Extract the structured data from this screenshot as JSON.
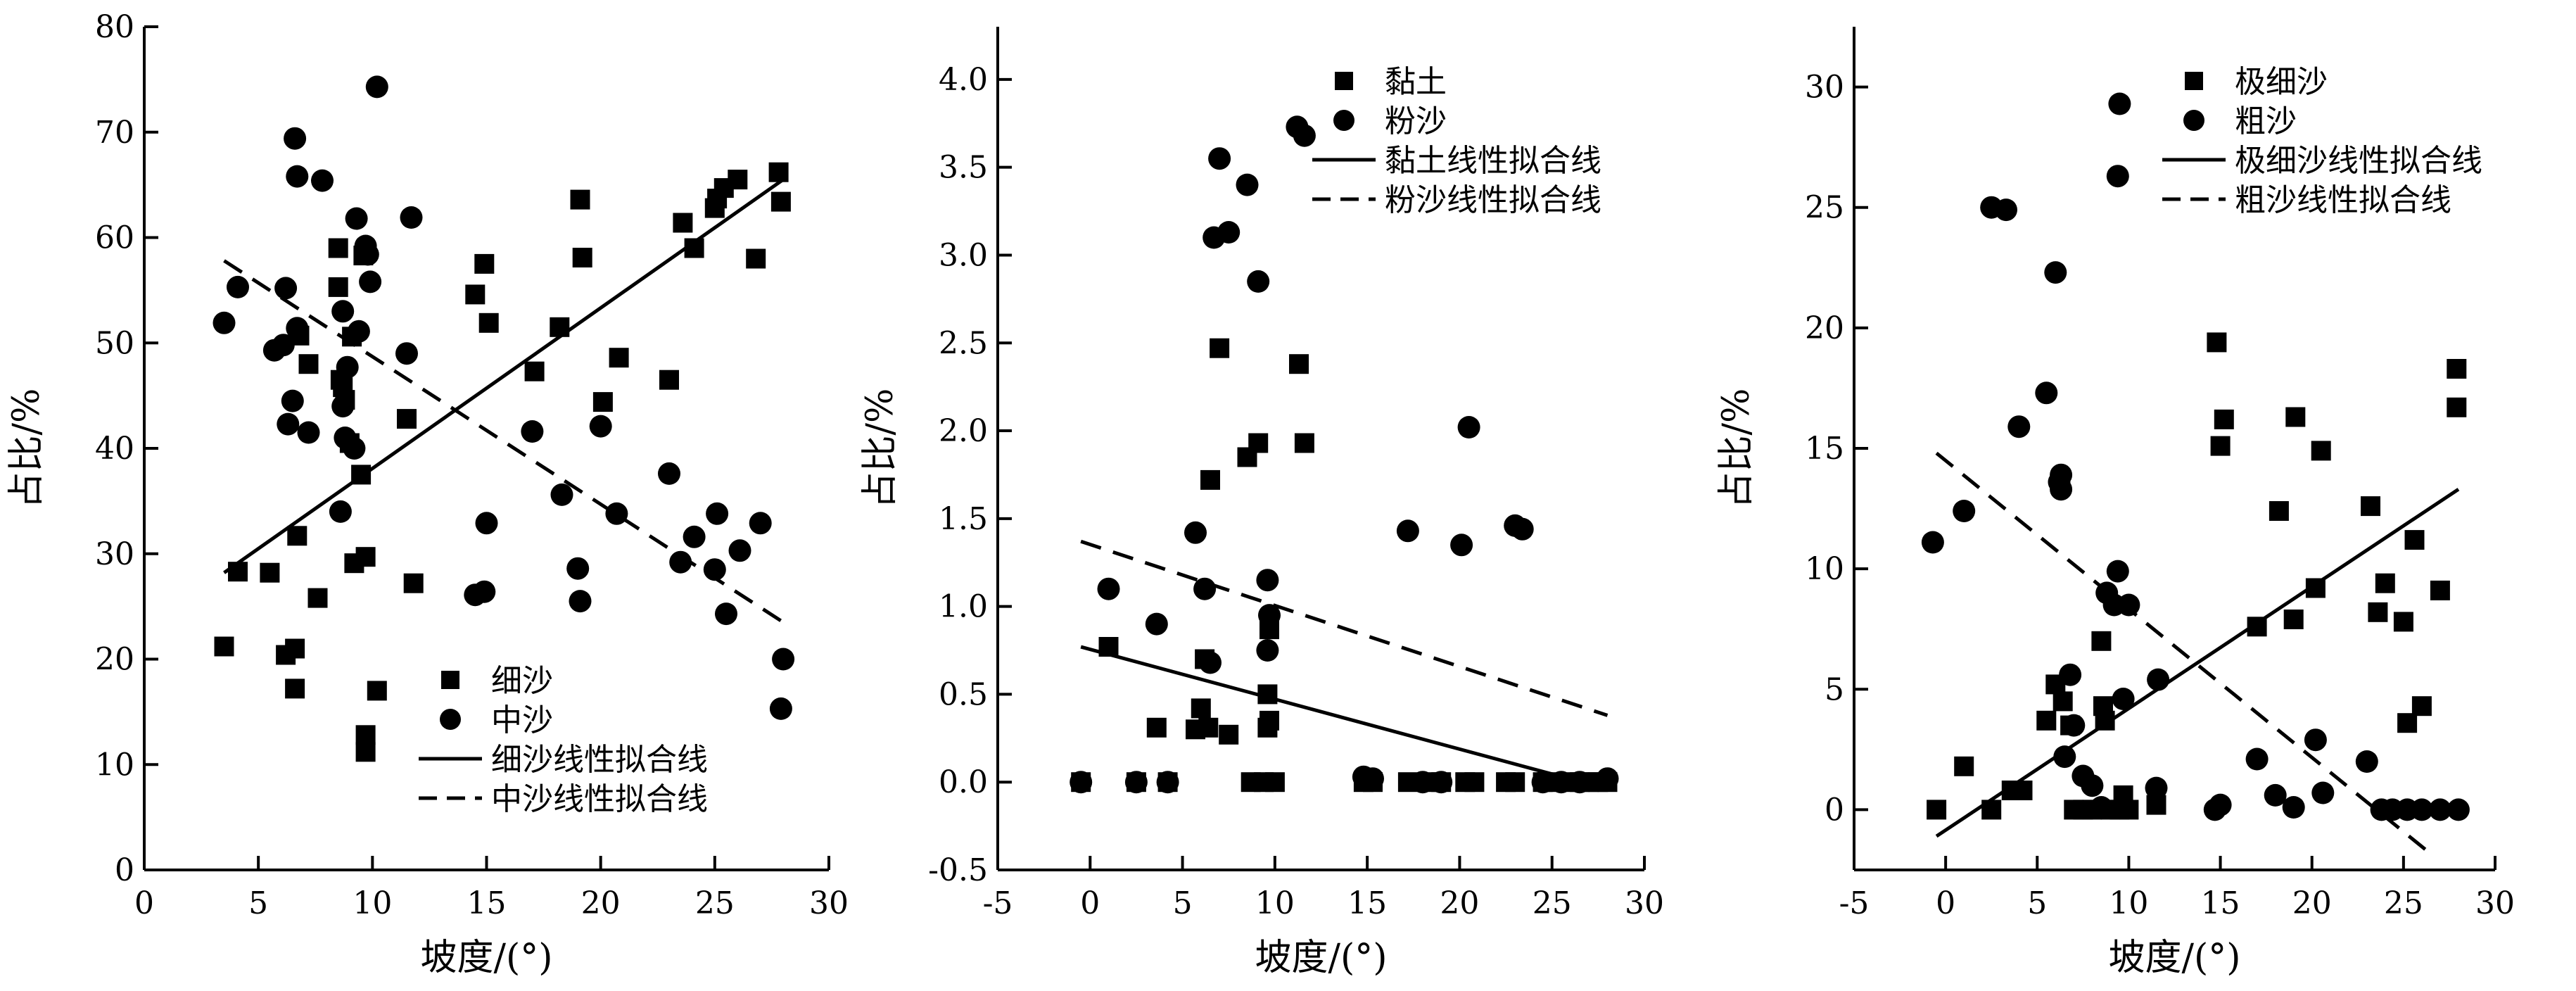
{
  "chart_data": [
    {
      "type": "scatter",
      "title": "",
      "xlabel": "坡度/(°)",
      "ylabel": "占比/%",
      "xlim": [
        0,
        30
      ],
      "ylim": [
        0,
        80
      ],
      "xticks": [
        "0",
        "5",
        "10",
        "15",
        "20",
        "25",
        "30"
      ],
      "yticks": [
        "0",
        "10",
        "20",
        "30",
        "40",
        "50",
        "60",
        "70",
        "80"
      ],
      "legend_position": "bottom-center",
      "series": [
        {
          "name": "细沙",
          "marker": "square",
          "points": [
            [
              3.5,
              21.2
            ],
            [
              4.1,
              28.3
            ],
            [
              5.5,
              28.2
            ],
            [
              6.2,
              20.4
            ],
            [
              6.6,
              17.2
            ],
            [
              6.6,
              21.0
            ],
            [
              6.7,
              31.7
            ],
            [
              6.8,
              50.7
            ],
            [
              7.2,
              48.0
            ],
            [
              7.6,
              25.8
            ],
            [
              8.5,
              59.0
            ],
            [
              8.5,
              55.3
            ],
            [
              8.6,
              46.5
            ],
            [
              8.7,
              45.8
            ],
            [
              8.8,
              44.6
            ],
            [
              9.0,
              40.5
            ],
            [
              9.1,
              50.6
            ],
            [
              9.2,
              29.1
            ],
            [
              9.5,
              37.5
            ],
            [
              9.6,
              58.3
            ],
            [
              9.7,
              29.7
            ],
            [
              9.7,
              12.8
            ],
            [
              9.7,
              11.2
            ],
            [
              10.2,
              17.0
            ],
            [
              11.5,
              42.8
            ],
            [
              11.8,
              27.2
            ],
            [
              14.5,
              54.6
            ],
            [
              14.9,
              57.5
            ],
            [
              15.1,
              51.9
            ],
            [
              17.1,
              47.3
            ],
            [
              18.2,
              51.5
            ],
            [
              19.1,
              63.6
            ],
            [
              19.2,
              58.1
            ],
            [
              20.1,
              44.4
            ],
            [
              20.8,
              48.6
            ],
            [
              23.0,
              46.5
            ],
            [
              23.6,
              61.4
            ],
            [
              24.1,
              59.0
            ],
            [
              25.0,
              62.8
            ],
            [
              25.1,
              63.7
            ],
            [
              25.4,
              64.7
            ],
            [
              26.0,
              65.5
            ],
            [
              26.8,
              58.0
            ],
            [
              27.8,
              66.2
            ],
            [
              27.9,
              63.4
            ]
          ]
        },
        {
          "name": "中沙",
          "marker": "circle",
          "points": [
            [
              3.5,
              51.9
            ],
            [
              4.1,
              55.3
            ],
            [
              5.7,
              49.3
            ],
            [
              6.1,
              49.8
            ],
            [
              6.2,
              55.2
            ],
            [
              6.6,
              69.4
            ],
            [
              6.7,
              65.8
            ],
            [
              6.7,
              51.4
            ],
            [
              6.3,
              42.3
            ],
            [
              6.5,
              44.5
            ],
            [
              7.2,
              41.5
            ],
            [
              7.8,
              65.4
            ],
            [
              8.6,
              34.0
            ],
            [
              8.7,
              44.0
            ],
            [
              8.8,
              41.0
            ],
            [
              8.9,
              47.7
            ],
            [
              8.7,
              53.0
            ],
            [
              9.2,
              40.0
            ],
            [
              9.3,
              61.8
            ],
            [
              9.4,
              51.1
            ],
            [
              9.7,
              59.2
            ],
            [
              9.8,
              58.4
            ],
            [
              9.9,
              55.8
            ],
            [
              10.2,
              74.3
            ],
            [
              11.5,
              49.0
            ],
            [
              11.7,
              61.9
            ],
            [
              14.5,
              26.1
            ],
            [
              14.9,
              26.4
            ],
            [
              15.0,
              32.9
            ],
            [
              17.0,
              41.6
            ],
            [
              18.3,
              35.6
            ],
            [
              19.0,
              28.6
            ],
            [
              19.1,
              25.5
            ],
            [
              20.0,
              42.1
            ],
            [
              20.7,
              33.8
            ],
            [
              23.0,
              37.6
            ],
            [
              23.5,
              29.2
            ],
            [
              24.1,
              31.6
            ],
            [
              25.0,
              28.5
            ],
            [
              25.1,
              33.8
            ],
            [
              25.5,
              24.3
            ],
            [
              26.1,
              30.3
            ],
            [
              27.0,
              32.9
            ],
            [
              28.0,
              20.0
            ],
            [
              27.9,
              15.3
            ]
          ]
        }
      ],
      "fit_lines": [
        {
          "name": "细沙线性拟合线",
          "style": "solid",
          "x": [
            3.5,
            28.0
          ],
          "y": [
            28.2,
            65.5
          ]
        },
        {
          "name": "中沙线性拟合线",
          "style": "dashed",
          "x": [
            3.5,
            28.0
          ],
          "y": [
            57.8,
            23.5
          ]
        }
      ]
    },
    {
      "type": "scatter",
      "title": "",
      "xlabel": "坡度/(°)",
      "ylabel": "占比/%",
      "xlim": [
        -5,
        30
      ],
      "ylim": [
        -0.5,
        4.3
      ],
      "xticks": [
        "-5",
        "0",
        "5",
        "10",
        "15",
        "20",
        "25",
        "30"
      ],
      "yticks": [
        "-0.5",
        "0.0",
        "0.5",
        "1.0",
        "1.5",
        "2.0",
        "2.5",
        "3.0",
        "3.5",
        "4.0"
      ],
      "legend_position": "top-right",
      "series": [
        {
          "name": "黏土",
          "marker": "square",
          "points": [
            [
              -0.5,
              0.0
            ],
            [
              1.0,
              0.77
            ],
            [
              2.5,
              0.0
            ],
            [
              3.6,
              0.31
            ],
            [
              4.2,
              0.0
            ],
            [
              5.7,
              0.3
            ],
            [
              6.0,
              0.42
            ],
            [
              6.2,
              0.7
            ],
            [
              6.4,
              0.31
            ],
            [
              6.5,
              1.72
            ],
            [
              7.0,
              2.47
            ],
            [
              7.5,
              0.27
            ],
            [
              8.5,
              1.85
            ],
            [
              8.7,
              0.0
            ],
            [
              9.1,
              1.93
            ],
            [
              9.4,
              0.0
            ],
            [
              9.6,
              0.5
            ],
            [
              9.7,
              0.87
            ],
            [
              9.6,
              0.31
            ],
            [
              9.7,
              0.35
            ],
            [
              10.0,
              0.0
            ],
            [
              11.3,
              2.38
            ],
            [
              11.6,
              1.93
            ],
            [
              14.8,
              0.0
            ],
            [
              15.3,
              0.0
            ],
            [
              17.2,
              0.0
            ],
            [
              18.5,
              0.0
            ],
            [
              19.0,
              0.0
            ],
            [
              20.3,
              0.0
            ],
            [
              20.8,
              0.0
            ],
            [
              22.5,
              0.0
            ],
            [
              23.0,
              0.0
            ],
            [
              24.5,
              0.0
            ],
            [
              25.2,
              0.0
            ],
            [
              25.8,
              0.0
            ],
            [
              26.5,
              0.0
            ],
            [
              27.0,
              0.0
            ],
            [
              27.5,
              0.0
            ],
            [
              28.0,
              0.0
            ]
          ]
        },
        {
          "name": "粉沙",
          "marker": "circle",
          "points": [
            [
              -0.5,
              0.0
            ],
            [
              1.0,
              1.1
            ],
            [
              2.5,
              0.0
            ],
            [
              3.6,
              0.9
            ],
            [
              4.2,
              0.0
            ],
            [
              5.7,
              1.42
            ],
            [
              6.2,
              1.1
            ],
            [
              6.5,
              0.68
            ],
            [
              6.7,
              3.1
            ],
            [
              7.0,
              3.55
            ],
            [
              7.5,
              3.13
            ],
            [
              8.5,
              3.4
            ],
            [
              9.1,
              2.85
            ],
            [
              9.6,
              1.15
            ],
            [
              9.7,
              0.95
            ],
            [
              9.6,
              0.75
            ],
            [
              11.2,
              3.73
            ],
            [
              11.6,
              3.68
            ],
            [
              14.8,
              0.03
            ],
            [
              15.3,
              0.02
            ],
            [
              17.2,
              1.43
            ],
            [
              18.0,
              0.0
            ],
            [
              19.0,
              0.0
            ],
            [
              20.1,
              1.35
            ],
            [
              20.5,
              2.02
            ],
            [
              23.0,
              1.46
            ],
            [
              23.4,
              1.44
            ],
            [
              24.5,
              0.0
            ],
            [
              25.5,
              0.0
            ],
            [
              26.5,
              0.0
            ],
            [
              28.0,
              0.02
            ]
          ]
        }
      ],
      "fit_lines": [
        {
          "name": "黏土线性拟合线",
          "style": "solid",
          "x": [
            -0.5,
            25.2
          ],
          "y": [
            0.77,
            0.04
          ]
        },
        {
          "name": "粉沙线性拟合线",
          "style": "dashed",
          "x": [
            -0.5,
            28.0
          ],
          "y": [
            1.37,
            0.38
          ]
        }
      ]
    },
    {
      "type": "scatter",
      "title": "",
      "xlabel": "坡度/(°)",
      "ylabel": "占比/%",
      "xlim": [
        -5,
        30
      ],
      "ylim": [
        -2.5,
        32.5
      ],
      "xticks": [
        "-5",
        "0",
        "5",
        "10",
        "15",
        "20",
        "25",
        "30"
      ],
      "yticks": [
        "0",
        "5",
        "10",
        "15",
        "20",
        "25",
        "30"
      ],
      "legend_position": "top-right",
      "series": [
        {
          "name": "极细沙",
          "marker": "square",
          "points": [
            [
              -0.5,
              0.0
            ],
            [
              1.0,
              1.8
            ],
            [
              2.5,
              0.0
            ],
            [
              3.6,
              0.8
            ],
            [
              4.2,
              0.8
            ],
            [
              5.5,
              3.7
            ],
            [
              6.0,
              5.2
            ],
            [
              6.4,
              4.5
            ],
            [
              6.8,
              3.5
            ],
            [
              7.0,
              0.0
            ],
            [
              7.5,
              0.0
            ],
            [
              8.0,
              0.0
            ],
            [
              8.5,
              7.0
            ],
            [
              8.6,
              4.3
            ],
            [
              8.7,
              3.7
            ],
            [
              9.0,
              0.0
            ],
            [
              9.5,
              0.0
            ],
            [
              9.7,
              0.6
            ],
            [
              10.0,
              0.0
            ],
            [
              11.5,
              0.2
            ],
            [
              14.8,
              19.4
            ],
            [
              15.2,
              16.2
            ],
            [
              15.0,
              15.1
            ],
            [
              17.0,
              7.6
            ],
            [
              18.2,
              12.4
            ],
            [
              19.1,
              16.3
            ],
            [
              19.0,
              7.9
            ],
            [
              20.2,
              9.2
            ],
            [
              20.5,
              14.9
            ],
            [
              23.2,
              12.6
            ],
            [
              23.6,
              8.2
            ],
            [
              24.0,
              9.4
            ],
            [
              25.0,
              7.8
            ],
            [
              25.2,
              3.6
            ],
            [
              25.6,
              11.2
            ],
            [
              26.0,
              4.3
            ],
            [
              27.0,
              9.1
            ],
            [
              27.9,
              18.3
            ],
            [
              27.9,
              16.7
            ]
          ]
        },
        {
          "name": "粗沙",
          "marker": "circle",
          "points": [
            [
              -0.7,
              11.1
            ],
            [
              1.0,
              12.4
            ],
            [
              2.5,
              25.0
            ],
            [
              3.3,
              24.9
            ],
            [
              4.0,
              15.9
            ],
            [
              5.5,
              17.3
            ],
            [
              6.0,
              22.3
            ],
            [
              6.2,
              13.6
            ],
            [
              6.3,
              13.3
            ],
            [
              6.3,
              13.9
            ],
            [
              6.5,
              2.2
            ],
            [
              6.8,
              5.6
            ],
            [
              7.0,
              3.5
            ],
            [
              7.5,
              1.4
            ],
            [
              8.0,
              1.0
            ],
            [
              8.5,
              0.1
            ],
            [
              8.8,
              9.0
            ],
            [
              9.2,
              8.5
            ],
            [
              9.4,
              9.9
            ],
            [
              9.5,
              29.3
            ],
            [
              9.4,
              26.3
            ],
            [
              9.7,
              4.6
            ],
            [
              10.0,
              8.5
            ],
            [
              11.5,
              0.9
            ],
            [
              11.6,
              5.4
            ],
            [
              14.7,
              0.0
            ],
            [
              15.0,
              0.2
            ],
            [
              17.0,
              2.1
            ],
            [
              18.0,
              0.6
            ],
            [
              19.0,
              0.1
            ],
            [
              20.2,
              2.9
            ],
            [
              20.6,
              0.7
            ],
            [
              23.0,
              2.0
            ],
            [
              23.8,
              0.0
            ],
            [
              24.4,
              0.0
            ],
            [
              25.2,
              0.0
            ],
            [
              26.0,
              0.0
            ],
            [
              27.0,
              0.0
            ],
            [
              28.0,
              0.0
            ]
          ]
        }
      ],
      "fit_lines": [
        {
          "name": "极细沙线性拟合线",
          "style": "solid",
          "x": [
            -0.5,
            28.0
          ],
          "y": [
            -1.1,
            13.3
          ]
        },
        {
          "name": "粗沙线性拟合线",
          "style": "dashed",
          "x": [
            -0.5,
            26.6
          ],
          "y": [
            14.8,
            -1.9
          ]
        }
      ]
    }
  ]
}
